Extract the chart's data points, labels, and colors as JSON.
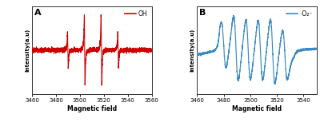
{
  "xlim_a": [
    3460,
    3560
  ],
  "xlim_b": [
    3460,
    3550
  ],
  "xticks_a": [
    3460,
    3480,
    3500,
    3520,
    3540,
    3560
  ],
  "xticks_b": [
    3460,
    3480,
    3500,
    3520,
    3540
  ],
  "xlabel": "Magnetic field",
  "ylabel": "Intensity(a.u)",
  "label_a": "OH",
  "label_b": "·O₂⁻",
  "color_a": "#cc0000",
  "color_b": "#3b8ac4",
  "panel_a": "A",
  "panel_b": "B",
  "bg_color": "#ffffff",
  "noise_scale_a": 0.025,
  "noise_scale_b": 0.012
}
